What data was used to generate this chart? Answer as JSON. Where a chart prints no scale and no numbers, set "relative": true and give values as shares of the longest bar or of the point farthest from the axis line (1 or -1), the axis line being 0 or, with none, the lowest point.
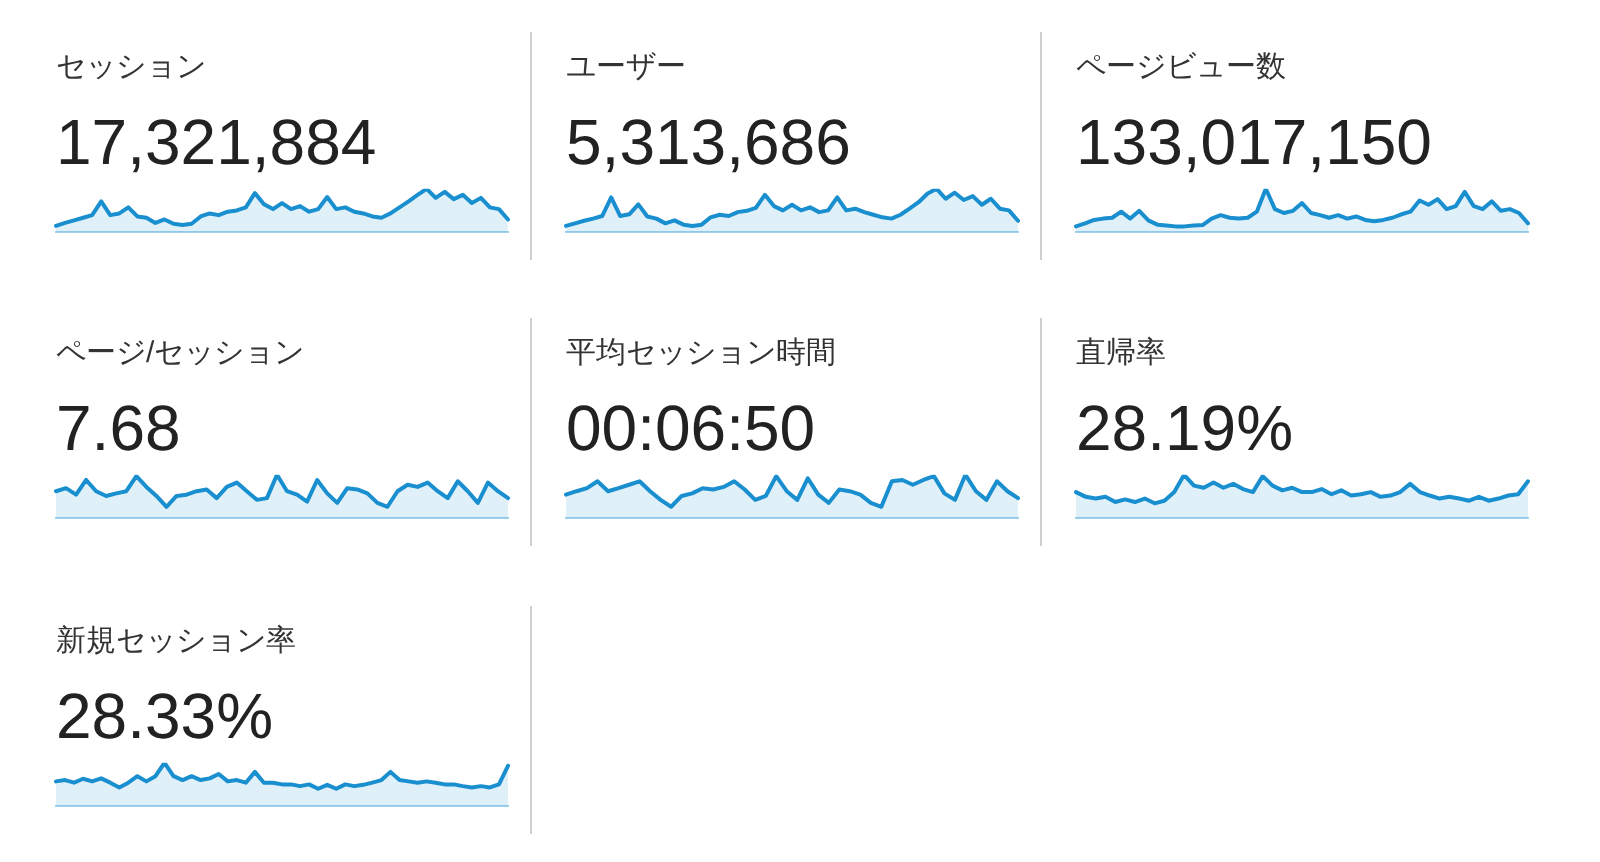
{
  "chart_data": [
    {
      "type": "area",
      "title": "セッション",
      "subtitle": "17,321,884",
      "color": "#1a8fd0",
      "relative": true,
      "categories": [
        null,
        null,
        null,
        null,
        null,
        null,
        null,
        null,
        null,
        null,
        null,
        null,
        null,
        null,
        null,
        null,
        null,
        null,
        null,
        null,
        null,
        null,
        null,
        null,
        null,
        null,
        null,
        null,
        null,
        null,
        null,
        null,
        null,
        null,
        null,
        null,
        null,
        null,
        null,
        null,
        null,
        null,
        null,
        null,
        null,
        null,
        null,
        null,
        null,
        null,
        null
      ],
      "values": [
        0.14,
        0.21,
        0.27,
        0.33,
        0.39,
        0.71,
        0.39,
        0.43,
        0.57,
        0.36,
        0.33,
        0.21,
        0.29,
        0.19,
        0.16,
        0.19,
        0.36,
        0.43,
        0.39,
        0.47,
        0.5,
        0.57,
        0.9,
        0.64,
        0.53,
        0.67,
        0.53,
        0.6,
        0.47,
        0.53,
        0.81,
        0.53,
        0.57,
        0.47,
        0.43,
        0.36,
        0.33,
        0.43,
        0.57,
        0.71,
        0.86,
        1,
        0.79,
        0.93,
        0.76,
        0.86,
        0.67,
        0.79,
        0.57,
        0.53,
        0.29
      ]
    },
    {
      "type": "area",
      "title": "ユーザー",
      "subtitle": "5,313,686",
      "color": "#1a8fd0",
      "relative": true,
      "categories": [
        null,
        null,
        null,
        null,
        null,
        null,
        null,
        null,
        null,
        null,
        null,
        null,
        null,
        null,
        null,
        null,
        null,
        null,
        null,
        null,
        null,
        null,
        null,
        null,
        null,
        null,
        null,
        null,
        null,
        null,
        null,
        null,
        null,
        null,
        null,
        null,
        null,
        null,
        null,
        null,
        null,
        null,
        null,
        null,
        null,
        null,
        null,
        null,
        null,
        null,
        null
      ],
      "values": [
        0.14,
        0.2,
        0.26,
        0.31,
        0.37,
        0.8,
        0.37,
        0.41,
        0.64,
        0.36,
        0.31,
        0.2,
        0.27,
        0.17,
        0.14,
        0.17,
        0.34,
        0.4,
        0.37,
        0.46,
        0.49,
        0.56,
        0.86,
        0.6,
        0.5,
        0.63,
        0.5,
        0.57,
        0.46,
        0.5,
        0.8,
        0.5,
        0.54,
        0.46,
        0.4,
        0.34,
        0.31,
        0.4,
        0.54,
        0.69,
        0.89,
        1,
        0.77,
        0.91,
        0.74,
        0.83,
        0.63,
        0.77,
        0.54,
        0.5,
        0.26
      ]
    },
    {
      "type": "area",
      "title": "ページビュー数",
      "subtitle": "133,017,150",
      "color": "#1a8fd0",
      "relative": true,
      "categories": [
        null,
        null,
        null,
        null,
        null,
        null,
        null,
        null,
        null,
        null,
        null,
        null,
        null,
        null,
        null,
        null,
        null,
        null,
        null,
        null,
        null,
        null,
        null,
        null,
        null,
        null,
        null,
        null,
        null,
        null,
        null,
        null,
        null,
        null,
        null,
        null,
        null,
        null,
        null,
        null,
        null,
        null,
        null,
        null,
        null,
        null,
        null,
        null,
        null,
        null,
        null
      ],
      "values": [
        0.13,
        0.2,
        0.28,
        0.31,
        0.33,
        0.47,
        0.31,
        0.49,
        0.27,
        0.17,
        0.15,
        0.13,
        0.13,
        0.15,
        0.16,
        0.31,
        0.39,
        0.33,
        0.31,
        0.33,
        0.47,
        1,
        0.53,
        0.44,
        0.49,
        0.67,
        0.44,
        0.39,
        0.33,
        0.39,
        0.31,
        0.36,
        0.28,
        0.25,
        0.28,
        0.33,
        0.41,
        0.47,
        0.73,
        0.63,
        0.76,
        0.53,
        0.6,
        0.93,
        0.6,
        0.53,
        0.71,
        0.49,
        0.53,
        0.44,
        0.2
      ]
    },
    {
      "type": "area",
      "title": "ページ/セッション",
      "subtitle": "7.68",
      "color": "#1a8fd0",
      "relative": true,
      "categories": [
        null,
        null,
        null,
        null,
        null,
        null,
        null,
        null,
        null,
        null,
        null,
        null,
        null,
        null,
        null,
        null,
        null,
        null,
        null,
        null,
        null,
        null,
        null,
        null,
        null,
        null,
        null,
        null,
        null,
        null,
        null,
        null,
        null,
        null,
        null,
        null,
        null,
        null,
        null,
        null,
        null,
        null,
        null,
        null,
        null,
        null
      ],
      "values": [
        0.62,
        0.69,
        0.54,
        0.88,
        0.62,
        0.51,
        0.57,
        0.62,
        0.97,
        0.72,
        0.51,
        0.26,
        0.51,
        0.54,
        0.62,
        0.66,
        0.46,
        0.72,
        0.82,
        0.62,
        0.42,
        0.46,
        1,
        0.62,
        0.54,
        0.38,
        0.88,
        0.57,
        0.35,
        0.69,
        0.66,
        0.57,
        0.35,
        0.26,
        0.62,
        0.77,
        0.72,
        0.82,
        0.62,
        0.46,
        0.85,
        0.62,
        0.35,
        0.82,
        0.62,
        0.46
      ]
    },
    {
      "type": "area",
      "title": "平均セッション時間",
      "subtitle": "00:06:50",
      "color": "#1a8fd0",
      "relative": true,
      "categories": [
        null,
        null,
        null,
        null,
        null,
        null,
        null,
        null,
        null,
        null,
        null,
        null,
        null,
        null,
        null,
        null,
        null,
        null,
        null,
        null,
        null,
        null,
        null,
        null,
        null,
        null,
        null,
        null,
        null,
        null,
        null,
        null,
        null,
        null,
        null,
        null,
        null,
        null,
        null,
        null,
        null,
        null,
        null,
        null
      ],
      "values": [
        0.54,
        0.62,
        0.69,
        0.85,
        0.62,
        0.69,
        0.77,
        0.85,
        0.62,
        0.42,
        0.26,
        0.51,
        0.57,
        0.69,
        0.66,
        0.72,
        0.85,
        0.66,
        0.42,
        0.51,
        0.97,
        0.62,
        0.42,
        0.92,
        0.54,
        0.35,
        0.66,
        0.62,
        0.54,
        0.35,
        0.26,
        0.85,
        0.88,
        0.77,
        0.88,
        0.97,
        0.57,
        0.42,
        1,
        0.62,
        0.42,
        0.85,
        0.62,
        0.46
      ]
    },
    {
      "type": "area",
      "title": "直帰率",
      "subtitle": "28.19%",
      "color": "#1a8fd0",
      "relative": true,
      "categories": [
        null,
        null,
        null,
        null,
        null,
        null,
        null,
        null,
        null,
        null,
        null,
        null,
        null,
        null,
        null,
        null,
        null,
        null,
        null,
        null,
        null,
        null,
        null,
        null,
        null,
        null,
        null,
        null,
        null,
        null,
        null,
        null,
        null,
        null,
        null,
        null,
        null,
        null,
        null,
        null,
        null,
        null,
        null,
        null,
        null,
        null,
        null
      ],
      "values": [
        0.6,
        0.49,
        0.45,
        0.49,
        0.37,
        0.43,
        0.37,
        0.45,
        0.34,
        0.4,
        0.6,
        1,
        0.75,
        0.7,
        0.82,
        0.7,
        0.79,
        0.67,
        0.6,
        0.97,
        0.75,
        0.64,
        0.7,
        0.6,
        0.6,
        0.67,
        0.55,
        0.64,
        0.52,
        0.55,
        0.6,
        0.49,
        0.52,
        0.6,
        0.79,
        0.6,
        0.52,
        0.45,
        0.49,
        0.45,
        0.4,
        0.49,
        0.4,
        0.45,
        0.52,
        0.55,
        0.85
      ]
    },
    {
      "type": "area",
      "title": "新規セッション率",
      "subtitle": "28.33%",
      "color": "#1a8fd0",
      "relative": true,
      "categories": [
        null,
        null,
        null,
        null,
        null,
        null,
        null,
        null,
        null,
        null,
        null,
        null,
        null,
        null,
        null,
        null,
        null,
        null,
        null,
        null,
        null,
        null,
        null,
        null,
        null,
        null,
        null,
        null,
        null,
        null,
        null,
        null,
        null,
        null,
        null,
        null,
        null,
        null,
        null,
        null,
        null,
        null,
        null,
        null,
        null,
        null,
        null,
        null,
        null,
        null,
        null
      ],
      "values": [
        0.57,
        0.6,
        0.54,
        0.63,
        0.57,
        0.64,
        0.54,
        0.43,
        0.54,
        0.69,
        0.57,
        0.69,
        1,
        0.69,
        0.6,
        0.69,
        0.6,
        0.64,
        0.74,
        0.57,
        0.6,
        0.54,
        0.79,
        0.54,
        0.54,
        0.5,
        0.5,
        0.46,
        0.5,
        0.4,
        0.49,
        0.4,
        0.5,
        0.46,
        0.49,
        0.54,
        0.6,
        0.79,
        0.6,
        0.57,
        0.54,
        0.57,
        0.54,
        0.5,
        0.5,
        0.46,
        0.43,
        0.46,
        0.43,
        0.5,
        0.93
      ]
    }
  ]
}
